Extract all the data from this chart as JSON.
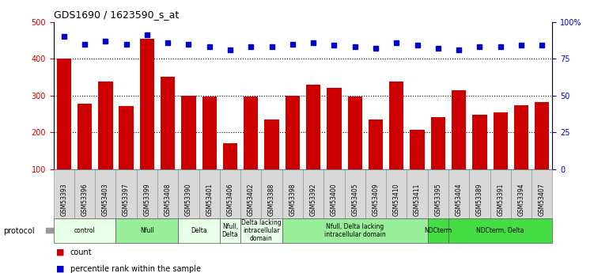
{
  "title": "GDS1690 / 1623590_s_at",
  "samples": [
    "GSM53393",
    "GSM53396",
    "GSM53403",
    "GSM53397",
    "GSM53399",
    "GSM53408",
    "GSM53390",
    "GSM53401",
    "GSM53406",
    "GSM53402",
    "GSM53388",
    "GSM53398",
    "GSM53392",
    "GSM53400",
    "GSM53405",
    "GSM53409",
    "GSM53410",
    "GSM53411",
    "GSM53395",
    "GSM53404",
    "GSM53389",
    "GSM53391",
    "GSM53394",
    "GSM53407"
  ],
  "counts": [
    400,
    278,
    338,
    272,
    455,
    352,
    300,
    297,
    170,
    298,
    235,
    300,
    330,
    320,
    297,
    235,
    338,
    207,
    242,
    315,
    248,
    255,
    273,
    282
  ],
  "percentile": [
    90,
    85,
    87,
    85,
    91,
    86,
    85,
    83,
    81,
    83,
    83,
    85,
    86,
    84,
    83,
    82,
    86,
    84,
    82,
    81,
    83,
    83,
    84,
    84
  ],
  "bar_color": "#cc0000",
  "dot_color": "#0000cc",
  "ylim_left": [
    100,
    500
  ],
  "ylim_right": [
    0,
    100
  ],
  "yticks_left": [
    100,
    200,
    300,
    400,
    500
  ],
  "yticks_right": [
    0,
    25,
    50,
    75,
    100
  ],
  "ytick_labels_right": [
    "0",
    "25",
    "50",
    "75",
    "100%"
  ],
  "gridlines": [
    200,
    300,
    400
  ],
  "groups": [
    {
      "label": "control",
      "start": 0,
      "end": 3,
      "color": "#e8ffe8"
    },
    {
      "label": "Nfull",
      "start": 3,
      "end": 6,
      "color": "#99ee99"
    },
    {
      "label": "Delta",
      "start": 6,
      "end": 8,
      "color": "#e8ffe8"
    },
    {
      "label": "Nfull,\nDelta",
      "start": 8,
      "end": 9,
      "color": "#e8ffe8"
    },
    {
      "label": "Delta lacking\nintracellular\ndomain",
      "start": 9,
      "end": 11,
      "color": "#e8ffe8"
    },
    {
      "label": "Nfull, Delta lacking\nintracellular domain",
      "start": 11,
      "end": 18,
      "color": "#99ee99"
    },
    {
      "label": "NDCterm",
      "start": 18,
      "end": 19,
      "color": "#44dd44"
    },
    {
      "label": "NDCterm, Delta",
      "start": 19,
      "end": 24,
      "color": "#44dd44"
    }
  ],
  "protocol_label": "protocol",
  "legend_count_label": "count",
  "legend_pct_label": "percentile rank within the sample",
  "bg_color": "#ffffff",
  "plot_bg_color": "#ffffff",
  "grid_color": "#000000"
}
